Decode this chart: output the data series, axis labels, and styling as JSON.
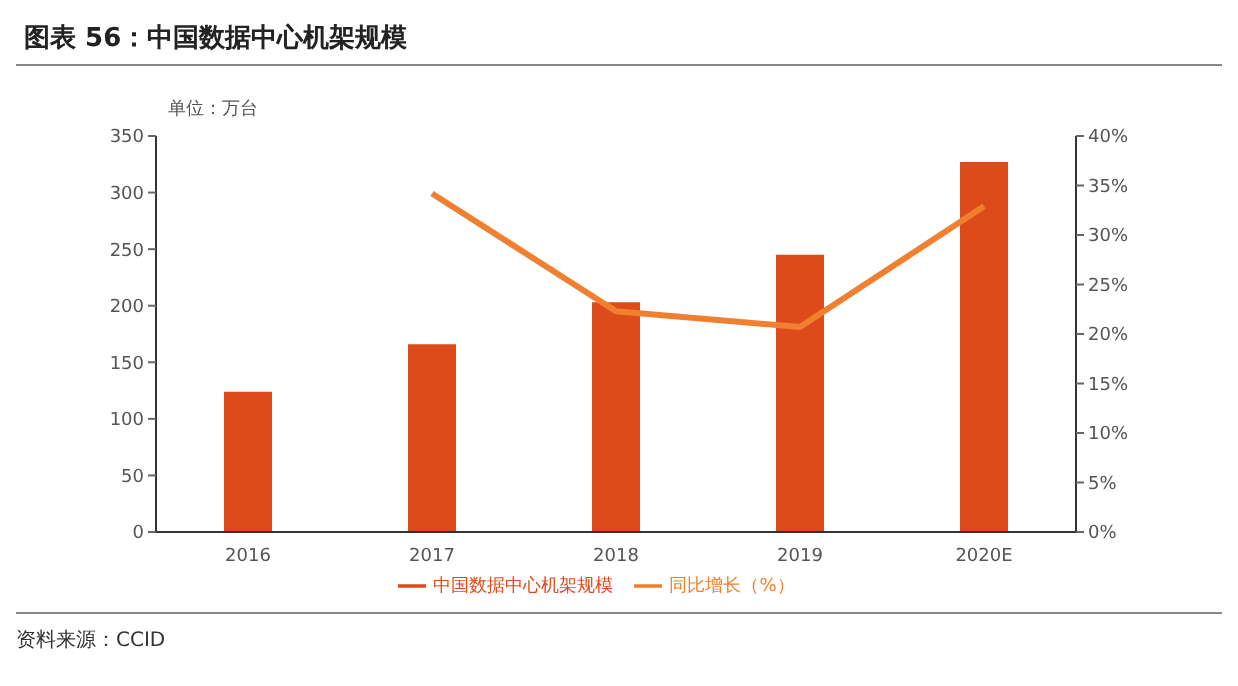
{
  "chart_data": {
    "type": "bar",
    "title": "图表 56：中国数据中心机架规模",
    "ylabel": "单位：万台",
    "categories": [
      "2016",
      "2017",
      "2018",
      "2019",
      "2020E"
    ],
    "series": [
      {
        "name": "中国数据中心机架规模",
        "color": "#dd4b1a",
        "values": [
          124,
          166,
          203,
          245,
          327
        ]
      },
      {
        "name": "同比增长（%）",
        "type": "line",
        "axis": "y2",
        "color": "#f08030",
        "values": [
          null,
          34.2,
          22.3,
          20.7,
          32.9
        ]
      }
    ],
    "ylim": [
      0,
      350
    ],
    "yticks": [
      0,
      50,
      100,
      150,
      200,
      250,
      300,
      350
    ],
    "y2lim": [
      0,
      40
    ],
    "y2ticks": [
      {
        "value": 0,
        "label": "0%"
      },
      {
        "value": 5,
        "label": "5%"
      },
      {
        "value": 10,
        "label": "10%"
      },
      {
        "value": 15,
        "label": "15%"
      },
      {
        "value": 20,
        "label": "20%"
      },
      {
        "value": 25,
        "label": "25%"
      },
      {
        "value": 30,
        "label": "30%"
      },
      {
        "value": 35,
        "label": "35%"
      },
      {
        "value": 40,
        "label": "40%"
      }
    ],
    "legend": "bottom",
    "marker": "none",
    "annotations": [
      "资料来源：CCID"
    ]
  }
}
